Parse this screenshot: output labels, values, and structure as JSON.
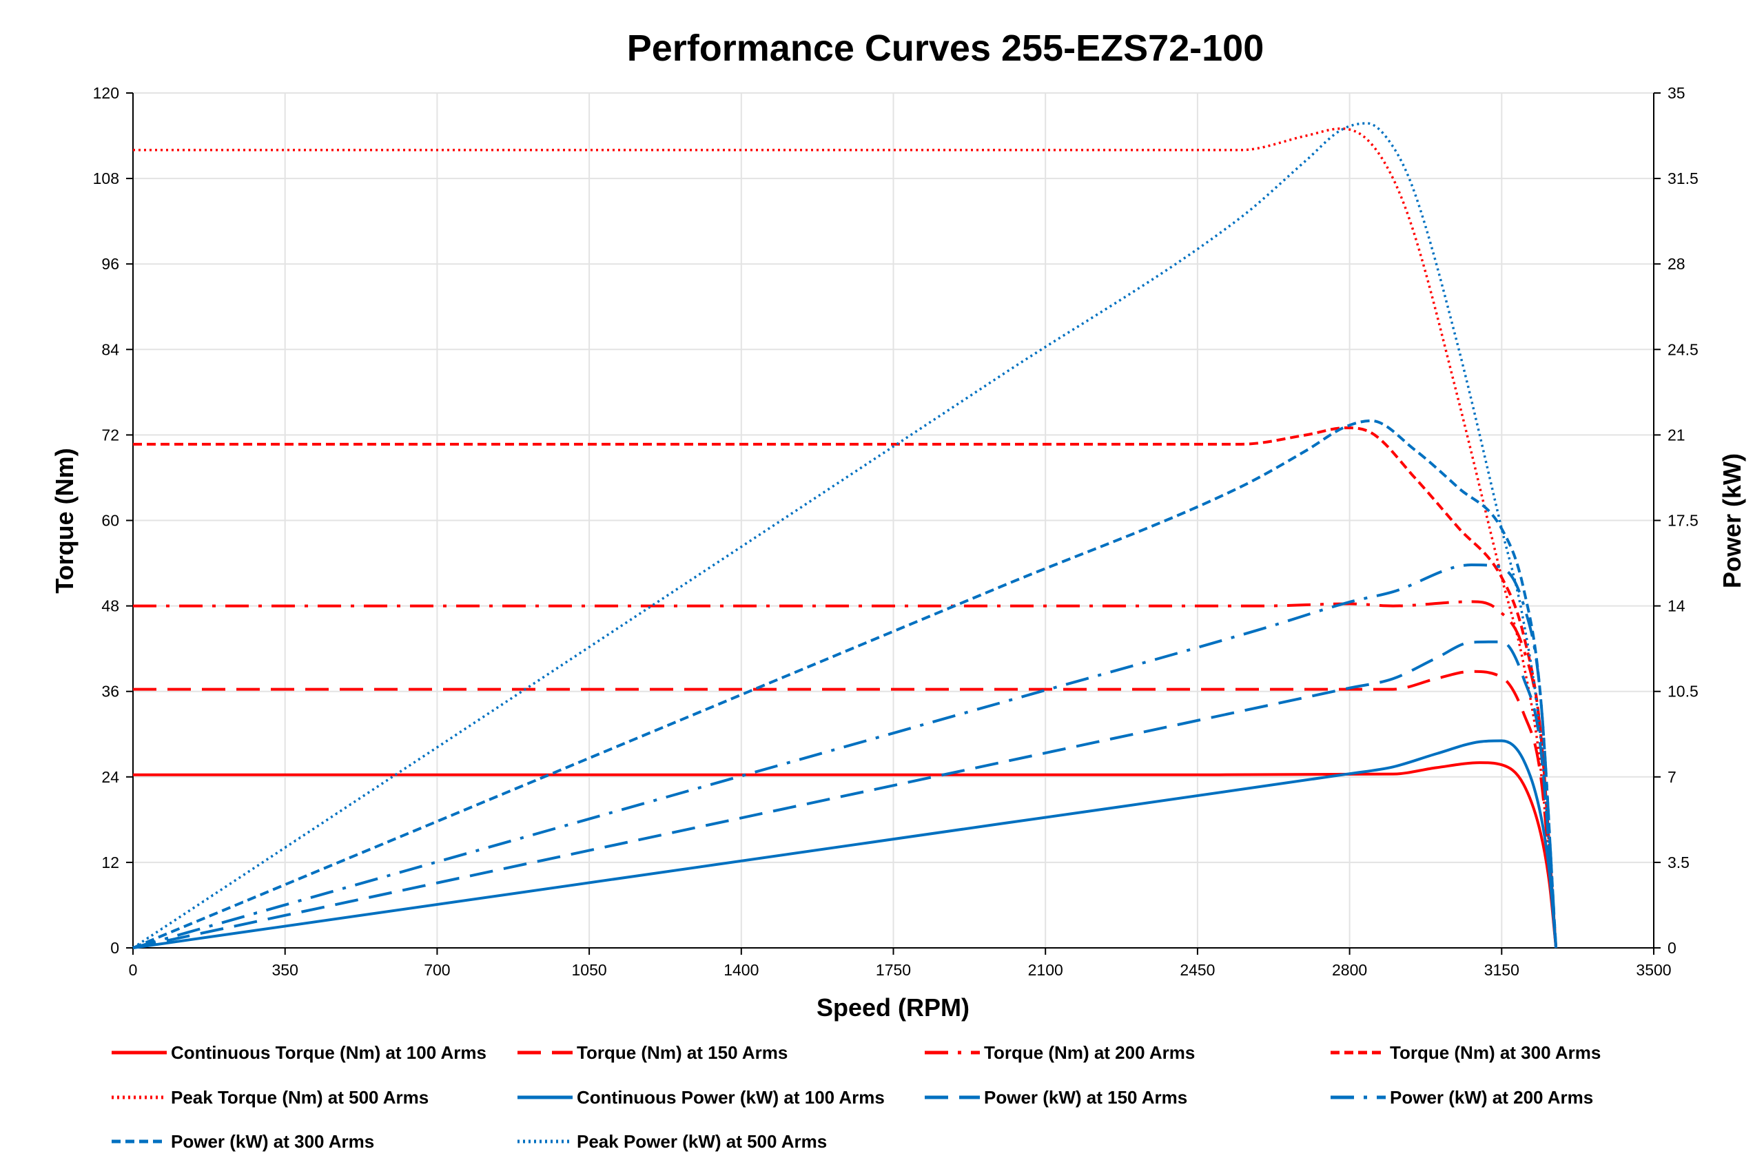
{
  "chart_data": {
    "type": "line",
    "title": "Performance Curves 255-EZS72-100",
    "xlabel": "Speed (RPM)",
    "ylabel": "Torque (Nm)",
    "y2label": "Power (kW)",
    "xlim": [
      0,
      3500
    ],
    "ylim": [
      0,
      120
    ],
    "y2lim": [
      0,
      35
    ],
    "x_ticks": [
      "0",
      "350",
      "700",
      "1050",
      "1400",
      "1750",
      "2100",
      "2450",
      "2800",
      "3150",
      "3500"
    ],
    "y_ticks": [
      "0",
      "12",
      "24",
      "36",
      "48",
      "60",
      "72",
      "84",
      "96",
      "108",
      "120"
    ],
    "y2_ticks": [
      "0",
      "3.5",
      "7",
      "10.5",
      "14",
      "17.5",
      "21",
      "24.5",
      "28",
      "31.5",
      "35"
    ],
    "grid": true,
    "legend_position": "bottom",
    "colors": {
      "torque": "#ff0000",
      "power": "#0070c0"
    },
    "series": [
      {
        "name": "Continuous Torque (Nm) at 100 Arms",
        "axis": "left",
        "color": "#ff0000",
        "style": "solid",
        "x": [
          0,
          2500,
          2900,
          3000,
          3100,
          3150,
          3200,
          3240,
          3260,
          3275
        ],
        "y": [
          24.3,
          24.3,
          24.4,
          25.3,
          26,
          25.7,
          23,
          16,
          9,
          0
        ]
      },
      {
        "name": "Torque (Nm) at 150 Arms",
        "axis": "left",
        "color": "#ff0000",
        "style": "long-dash",
        "x": [
          0,
          2900,
          3000,
          3080,
          3150,
          3200,
          3240,
          3275
        ],
        "y": [
          36.3,
          36.3,
          37.8,
          38.8,
          38,
          33,
          24,
          0
        ]
      },
      {
        "name": "Torque (Nm) at 200 Arms",
        "axis": "left",
        "color": "#ff0000",
        "style": "dash-dot",
        "x": [
          0,
          2600,
          2800,
          2900,
          3080,
          3140,
          3200,
          3240,
          3275
        ],
        "y": [
          48,
          48,
          48.3,
          48,
          48.6,
          47.5,
          42,
          30,
          0
        ]
      },
      {
        "name": "Torque (Nm) at 300 Arms",
        "axis": "left",
        "color": "#ff0000",
        "style": "short-dash",
        "x": [
          0,
          2550,
          2700,
          2790,
          2850,
          2950,
          3050,
          3150,
          3200,
          3240,
          3275
        ],
        "y": [
          70.7,
          70.7,
          72,
          73,
          72.3,
          66,
          59,
          52,
          44,
          30,
          0
        ]
      },
      {
        "name": "Peak Torque (Nm) at 500 Arms",
        "axis": "left",
        "color": "#ff0000",
        "style": "dotted",
        "x": [
          0,
          2550,
          2700,
          2780,
          2840,
          2900,
          2950,
          3050,
          3150,
          3200,
          3240,
          3275
        ],
        "y": [
          112,
          112,
          114,
          115,
          113.5,
          108,
          100,
          77,
          52,
          40,
          25,
          0
        ]
      },
      {
        "name": "Continuous Power (kW) at 100 Arms",
        "axis": "right",
        "color": "#0070c0",
        "style": "solid",
        "x": [
          0,
          1000,
          2000,
          2800,
          2900,
          3000,
          3100,
          3150,
          3200,
          3240,
          3260,
          3275
        ],
        "y": [
          0,
          2.54,
          5.09,
          7.13,
          7.41,
          7.95,
          8.44,
          8.48,
          7.7,
          5.43,
          3.07,
          0
        ]
      },
      {
        "name": "Power (kW) at 150 Arms",
        "axis": "right",
        "color": "#0070c0",
        "style": "long-dash",
        "x": [
          0,
          1000,
          2000,
          2800,
          2900,
          3000,
          3080,
          3150,
          3200,
          3240,
          3275
        ],
        "y": [
          0,
          3.8,
          7.6,
          10.64,
          11.02,
          11.87,
          12.51,
          12.53,
          11.06,
          8.14,
          0
        ]
      },
      {
        "name": "Power (kW) at 200 Arms",
        "axis": "right",
        "color": "#0070c0",
        "style": "dash-dot",
        "x": [
          0,
          1000,
          2000,
          2600,
          2800,
          2900,
          3080,
          3140,
          3200,
          3240,
          3275
        ],
        "y": [
          0,
          5.03,
          10.05,
          13.07,
          14.16,
          14.58,
          15.68,
          15.62,
          14.07,
          10.18,
          0
        ]
      },
      {
        "name": "Power (kW) at 300 Arms",
        "axis": "right",
        "color": "#0070c0",
        "style": "short-dash",
        "x": [
          0,
          1000,
          2000,
          2550,
          2700,
          2790,
          2850,
          2950,
          3050,
          3150,
          3200,
          3240,
          3275
        ],
        "y": [
          0,
          7.4,
          14.81,
          18.88,
          20.36,
          21.33,
          21.58,
          20.39,
          18.84,
          17.16,
          14.74,
          10.18,
          0
        ]
      },
      {
        "name": "Peak Power (kW) at 500 Arms",
        "axis": "right",
        "color": "#0070c0",
        "style": "dotted",
        "x": [
          0,
          1000,
          2000,
          2550,
          2700,
          2780,
          2840,
          2900,
          2950,
          3050,
          3150,
          3200,
          3240,
          3275
        ],
        "y": [
          0,
          11.73,
          23.46,
          29.91,
          32.24,
          33.48,
          33.76,
          32.8,
          30.9,
          24.6,
          17.16,
          13.4,
          8.48,
          0
        ]
      }
    ]
  }
}
